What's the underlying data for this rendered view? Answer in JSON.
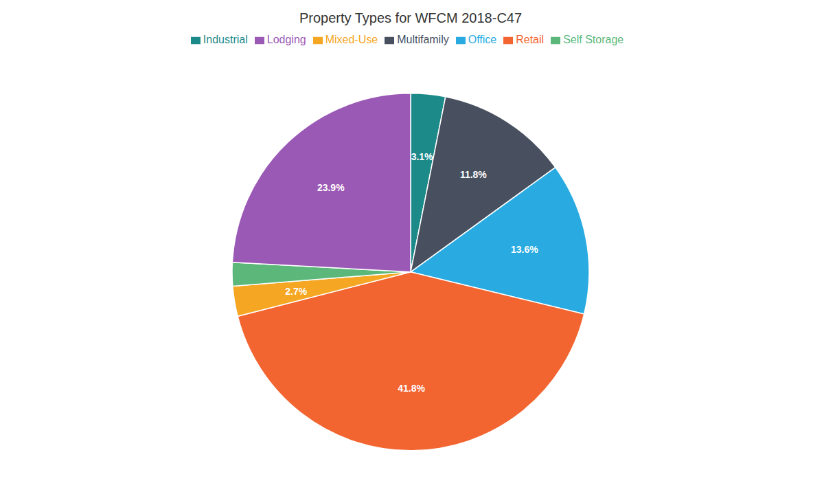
{
  "chart_data": {
    "type": "pie",
    "title": "Property Types for WFCM 2018-C47",
    "categories": [
      "Industrial",
      "Multifamily",
      "Office",
      "Retail",
      "Mixed-Use",
      "Self Storage",
      "Lodging"
    ],
    "values": [
      3.1,
      11.8,
      13.6,
      41.8,
      2.7,
      2.1,
      23.9
    ],
    "colors": [
      "#1d8a8a",
      "#484f5e",
      "#29abe2",
      "#f26430",
      "#f5a623",
      "#5cb87a",
      "#9b59b6"
    ],
    "data_labels": true,
    "value_labels": [
      "3.1%",
      "11.8%",
      "13.6%",
      "41.8%",
      "2.7%",
      null,
      "23.9%"
    ],
    "legend": "top"
  }
}
